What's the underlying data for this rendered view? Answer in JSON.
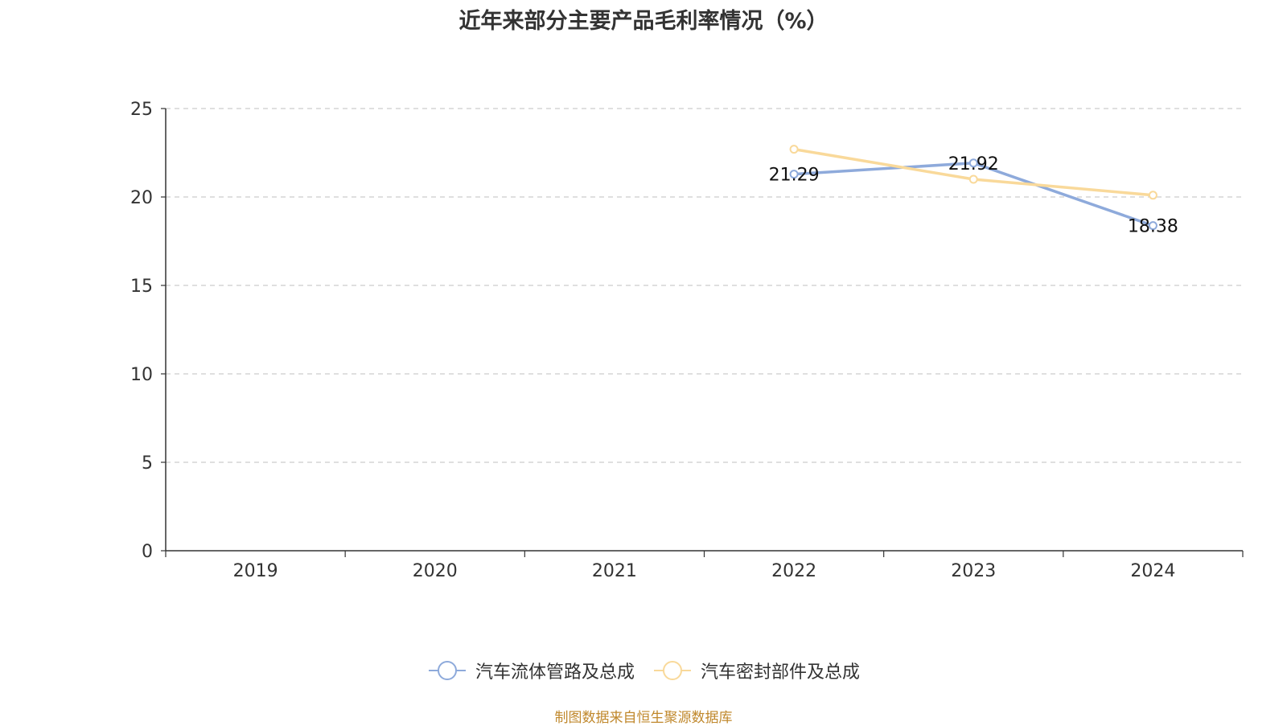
{
  "chart_data": {
    "type": "line",
    "title": "近年来部分主要产品毛利率情况（%）",
    "categories": [
      "2019",
      "2020",
      "2021",
      "2022",
      "2023",
      "2024"
    ],
    "ylim": [
      0,
      25
    ],
    "yticks": [
      "0",
      "5",
      "10",
      "15",
      "20",
      "25"
    ],
    "grid": true,
    "legend_position": "bottom",
    "series": [
      {
        "name": "汽车流体管路及总成",
        "color": "#8eaadb",
        "values": [
          null,
          null,
          null,
          21.29,
          21.92,
          18.38
        ],
        "labels": [
          "",
          "",
          "",
          "21.29",
          "21.92",
          "18.38"
        ]
      },
      {
        "name": "汽车密封部件及总成",
        "color": "#f9d99a",
        "values": [
          null,
          null,
          null,
          22.7,
          21.0,
          20.1
        ],
        "labels": [
          "",
          "",
          "",
          "",
          "",
          ""
        ]
      }
    ]
  },
  "source_note": "制图数据来自恒生聚源数据库"
}
